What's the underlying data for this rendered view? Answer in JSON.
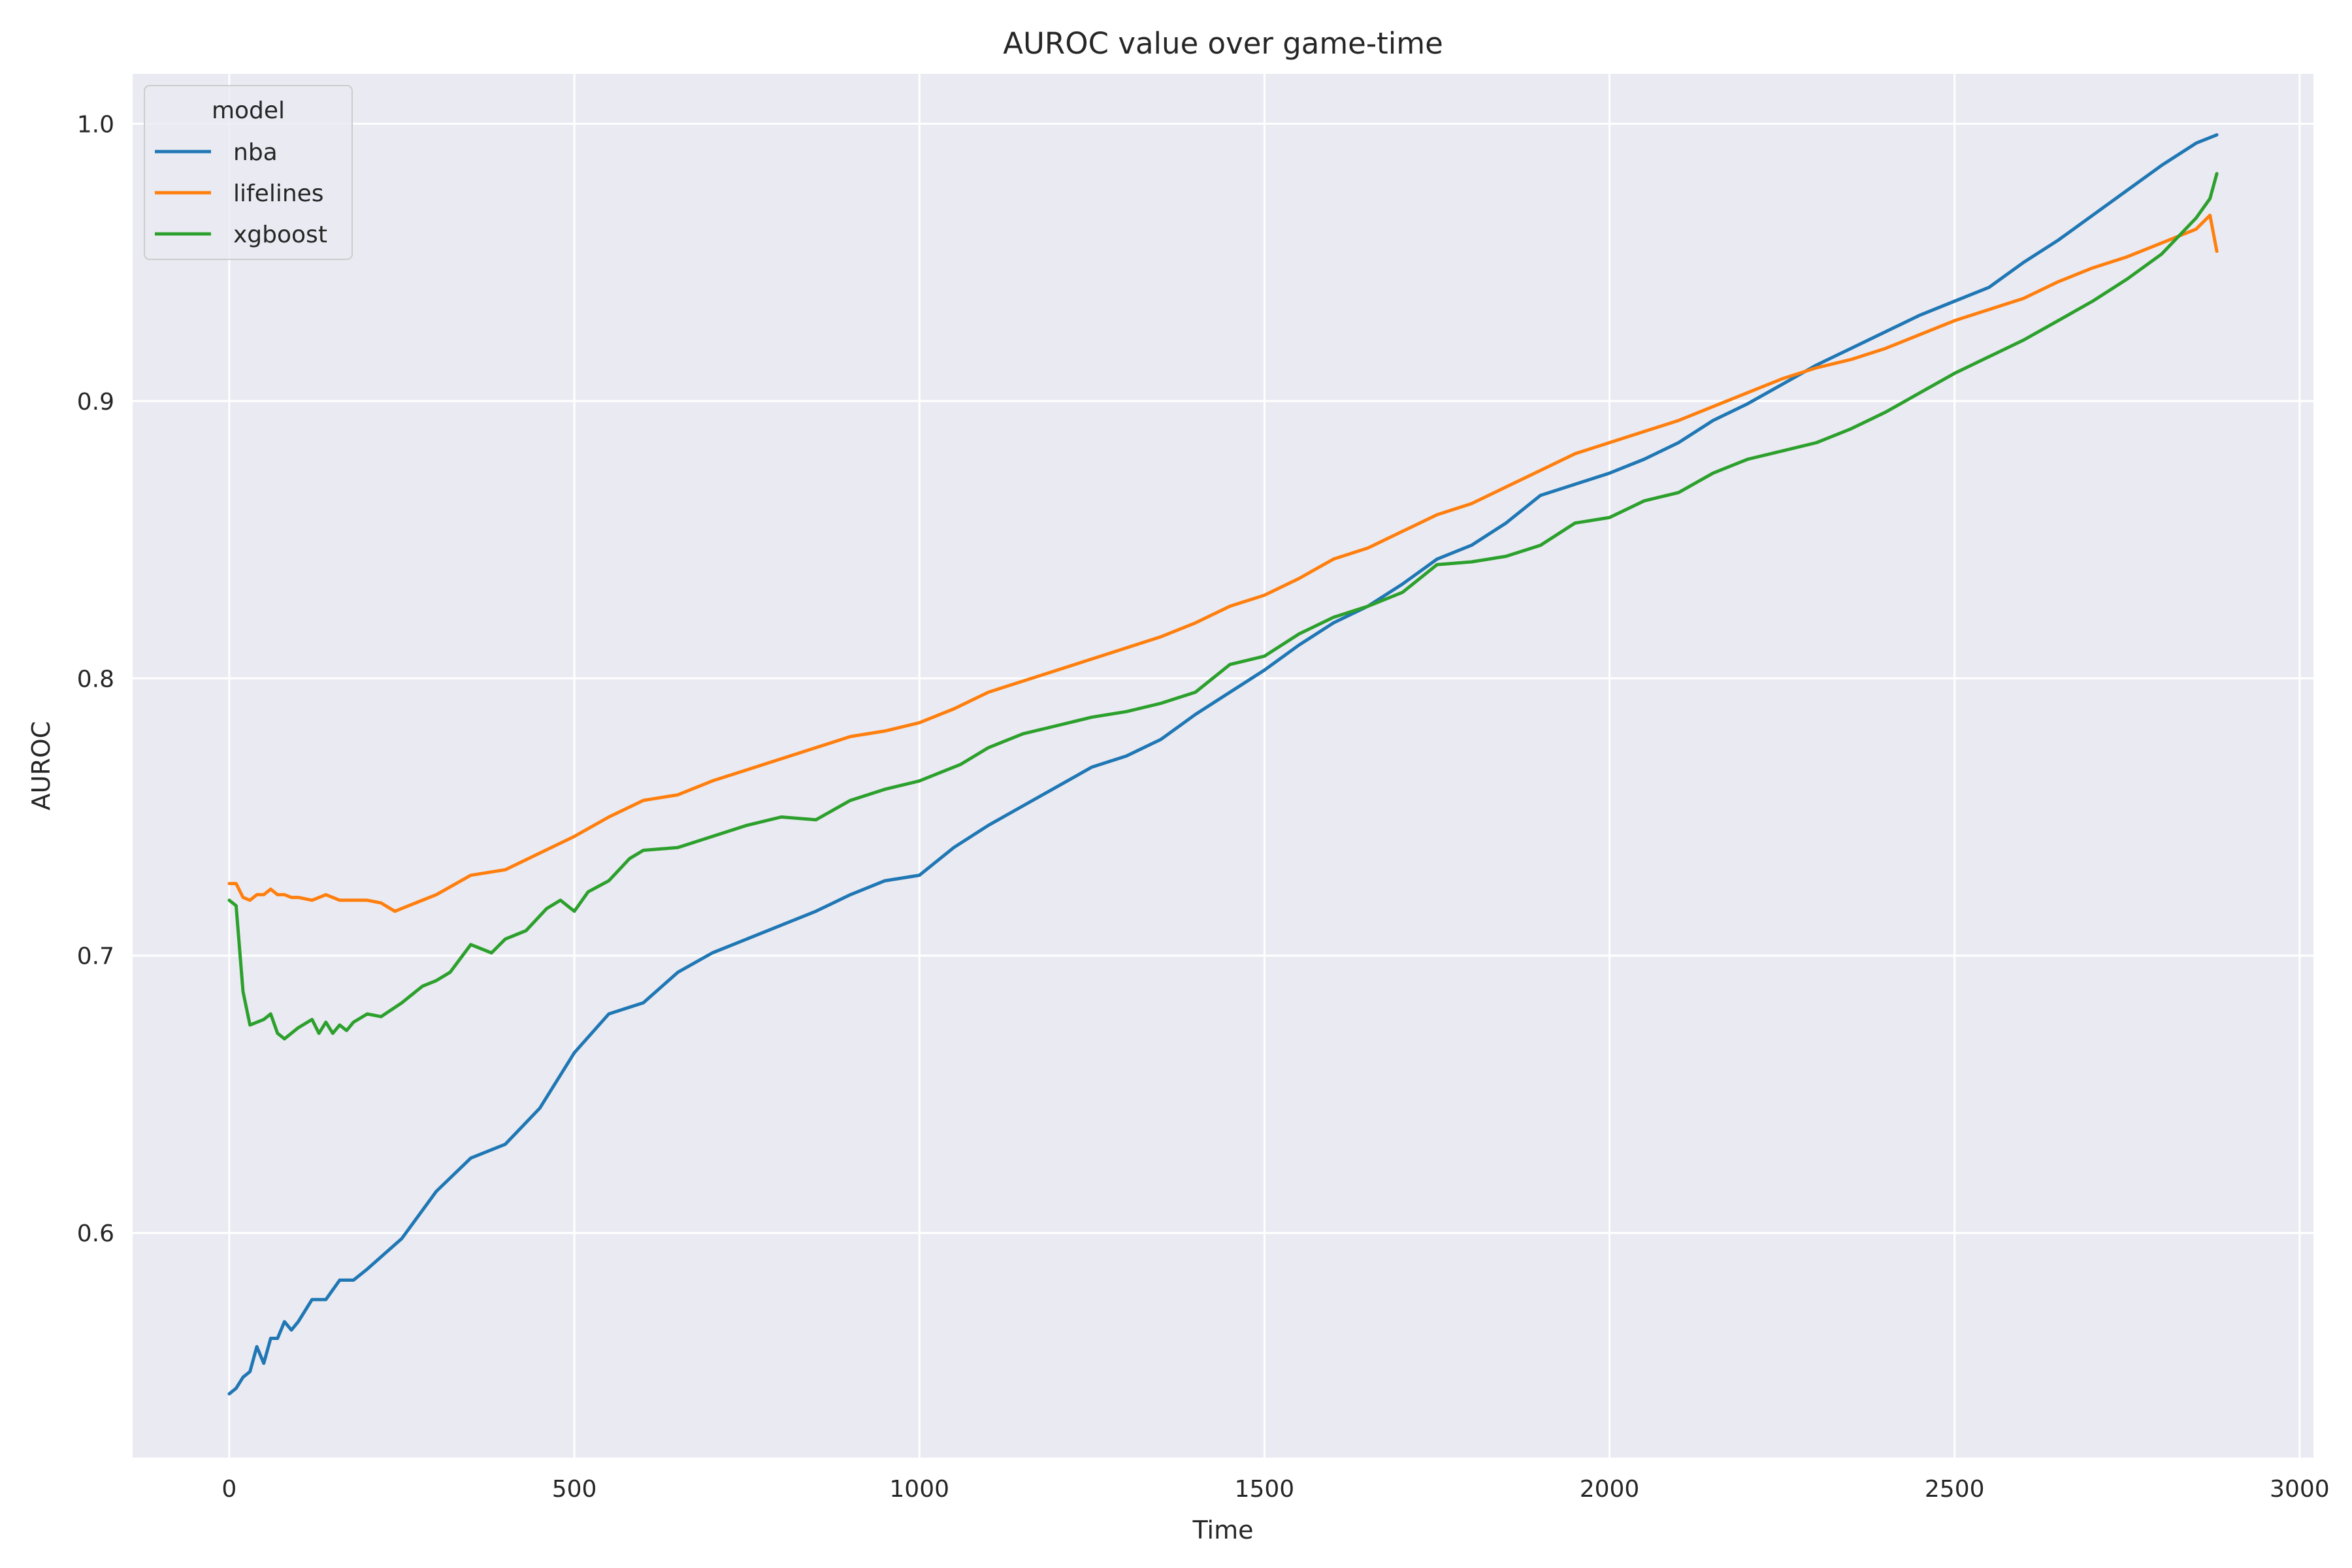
{
  "chart_data": {
    "type": "line",
    "title": "AUROC value over game-time",
    "xlabel": "Time",
    "ylabel": "AUROC",
    "xlim": [
      -140,
      3020
    ],
    "ylim": [
      0.519,
      1.018
    ],
    "xticks": [
      0,
      500,
      1000,
      1500,
      2000,
      2500,
      3000
    ],
    "yticks": [
      0.6,
      0.7,
      0.8,
      0.9,
      1.0
    ],
    "xtick_labels": [
      "0",
      "500",
      "1000",
      "1500",
      "2000",
      "2500",
      "3000"
    ],
    "ytick_labels": [
      "0.6",
      "0.7",
      "0.8",
      "0.9",
      "1.0"
    ],
    "grid": true,
    "background": "#eaeaf2",
    "legend": {
      "title": "model",
      "position": "top-left"
    },
    "series": [
      {
        "name": "nba",
        "color": "#1f77b4",
        "x": [
          0,
          10,
          20,
          30,
          40,
          50,
          60,
          70,
          80,
          90,
          100,
          120,
          140,
          160,
          180,
          200,
          250,
          300,
          350,
          400,
          450,
          500,
          550,
          600,
          650,
          700,
          750,
          800,
          850,
          900,
          950,
          1000,
          1050,
          1100,
          1150,
          1200,
          1250,
          1300,
          1350,
          1400,
          1450,
          1500,
          1550,
          1600,
          1650,
          1700,
          1750,
          1800,
          1850,
          1900,
          1950,
          2000,
          2050,
          2100,
          2150,
          2200,
          2250,
          2300,
          2350,
          2400,
          2450,
          2500,
          2550,
          2600,
          2650,
          2700,
          2750,
          2800,
          2850,
          2880
        ],
        "y": [
          0.542,
          0.544,
          0.548,
          0.55,
          0.559,
          0.553,
          0.562,
          0.562,
          0.568,
          0.565,
          0.568,
          0.576,
          0.576,
          0.583,
          0.583,
          0.587,
          0.598,
          0.615,
          0.627,
          0.632,
          0.645,
          0.665,
          0.679,
          0.683,
          0.694,
          0.701,
          0.706,
          0.711,
          0.716,
          0.722,
          0.727,
          0.729,
          0.739,
          0.747,
          0.754,
          0.761,
          0.768,
          0.772,
          0.778,
          0.787,
          0.795,
          0.803,
          0.812,
          0.82,
          0.826,
          0.834,
          0.843,
          0.848,
          0.856,
          0.866,
          0.87,
          0.874,
          0.879,
          0.885,
          0.893,
          0.899,
          0.906,
          0.913,
          0.919,
          0.925,
          0.931,
          0.936,
          0.941,
          0.95,
          0.958,
          0.967,
          0.976,
          0.985,
          0.993,
          0.996
        ]
      },
      {
        "name": "lifelines",
        "color": "#ff7f0e",
        "x": [
          0,
          10,
          20,
          30,
          40,
          50,
          60,
          70,
          80,
          90,
          100,
          120,
          140,
          160,
          180,
          200,
          220,
          240,
          260,
          300,
          350,
          400,
          450,
          500,
          550,
          600,
          650,
          700,
          750,
          800,
          850,
          900,
          950,
          1000,
          1050,
          1100,
          1150,
          1200,
          1250,
          1300,
          1350,
          1400,
          1450,
          1500,
          1550,
          1600,
          1650,
          1700,
          1750,
          1800,
          1850,
          1900,
          1950,
          2000,
          2050,
          2100,
          2150,
          2200,
          2250,
          2300,
          2350,
          2400,
          2450,
          2500,
          2550,
          2600,
          2650,
          2700,
          2750,
          2800,
          2850,
          2870,
          2880
        ],
        "y": [
          0.726,
          0.726,
          0.721,
          0.72,
          0.722,
          0.722,
          0.724,
          0.722,
          0.722,
          0.721,
          0.721,
          0.72,
          0.722,
          0.72,
          0.72,
          0.72,
          0.719,
          0.716,
          0.718,
          0.722,
          0.729,
          0.731,
          0.737,
          0.743,
          0.75,
          0.756,
          0.758,
          0.763,
          0.767,
          0.771,
          0.775,
          0.779,
          0.781,
          0.784,
          0.789,
          0.795,
          0.799,
          0.803,
          0.807,
          0.811,
          0.815,
          0.82,
          0.826,
          0.83,
          0.836,
          0.843,
          0.847,
          0.853,
          0.859,
          0.863,
          0.869,
          0.875,
          0.881,
          0.885,
          0.889,
          0.893,
          0.898,
          0.903,
          0.908,
          0.912,
          0.915,
          0.919,
          0.924,
          0.929,
          0.933,
          0.937,
          0.943,
          0.948,
          0.952,
          0.957,
          0.962,
          0.967,
          0.954
        ]
      },
      {
        "name": "xgboost",
        "color": "#2ca02c",
        "x": [
          0,
          10,
          20,
          30,
          50,
          60,
          70,
          80,
          100,
          120,
          130,
          140,
          150,
          160,
          170,
          180,
          200,
          220,
          250,
          280,
          300,
          320,
          350,
          380,
          400,
          430,
          460,
          480,
          500,
          520,
          550,
          580,
          600,
          650,
          700,
          750,
          800,
          850,
          900,
          950,
          1000,
          1030,
          1060,
          1100,
          1150,
          1200,
          1250,
          1300,
          1350,
          1400,
          1450,
          1500,
          1550,
          1600,
          1650,
          1700,
          1750,
          1800,
          1850,
          1900,
          1950,
          2000,
          2050,
          2100,
          2150,
          2200,
          2250,
          2300,
          2350,
          2400,
          2450,
          2500,
          2550,
          2600,
          2650,
          2700,
          2750,
          2800,
          2850,
          2870,
          2880
        ],
        "y": [
          0.72,
          0.718,
          0.687,
          0.675,
          0.677,
          0.679,
          0.672,
          0.67,
          0.674,
          0.677,
          0.672,
          0.676,
          0.672,
          0.675,
          0.673,
          0.676,
          0.679,
          0.678,
          0.683,
          0.689,
          0.691,
          0.694,
          0.704,
          0.701,
          0.706,
          0.709,
          0.717,
          0.72,
          0.716,
          0.723,
          0.727,
          0.735,
          0.738,
          0.739,
          0.743,
          0.747,
          0.75,
          0.749,
          0.756,
          0.76,
          0.763,
          0.766,
          0.769,
          0.775,
          0.78,
          0.783,
          0.786,
          0.788,
          0.791,
          0.795,
          0.805,
          0.808,
          0.816,
          0.822,
          0.826,
          0.831,
          0.841,
          0.842,
          0.844,
          0.848,
          0.856,
          0.858,
          0.864,
          0.867,
          0.874,
          0.879,
          0.882,
          0.885,
          0.89,
          0.896,
          0.903,
          0.91,
          0.916,
          0.922,
          0.929,
          0.936,
          0.944,
          0.953,
          0.966,
          0.973,
          0.982
        ]
      }
    ]
  }
}
